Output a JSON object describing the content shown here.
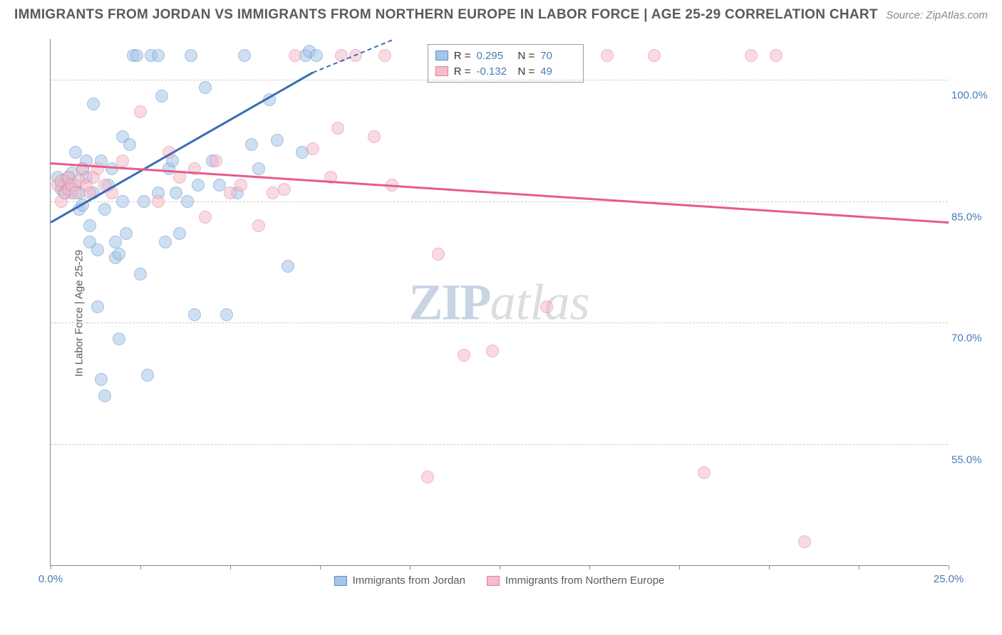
{
  "header": {
    "title": "IMMIGRANTS FROM JORDAN VS IMMIGRANTS FROM NORTHERN EUROPE IN LABOR FORCE | AGE 25-29 CORRELATION CHART",
    "source": "Source: ZipAtlas.com"
  },
  "chart": {
    "type": "scatter",
    "y_axis_label": "In Labor Force | Age 25-29",
    "xlim": [
      0,
      25
    ],
    "ylim": [
      40,
      105
    ],
    "x_ticks": [
      0,
      2.5,
      5,
      7.5,
      10,
      12.5,
      15,
      17.5,
      20,
      22.5,
      25
    ],
    "x_tick_labels": {
      "0": "0.0%",
      "25": "25.0%"
    },
    "y_ticks": [
      55,
      70,
      85,
      100
    ],
    "y_tick_labels": {
      "55": "55.0%",
      "70": "70.0%",
      "85": "85.0%",
      "100": "100.0%"
    },
    "grid_color": "#cccccc",
    "background_color": "#ffffff",
    "axis_color": "#888888",
    "tick_label_color": "#4a7bb8",
    "marker_size": 18,
    "marker_opacity": 0.55,
    "watermark": {
      "part1": "ZIP",
      "part2": "atlas",
      "color1": "#c8d4e3",
      "color2": "#dddddd",
      "fontsize": 72
    },
    "series": [
      {
        "name": "Immigrants from Jordan",
        "color_fill": "#a7c5e8",
        "color_border": "#5b8fc7",
        "trend_color": "#3a6db5",
        "R": "0.295",
        "N": "70",
        "trend": {
          "x1": 0,
          "y1": 82.5,
          "x2": 7.3,
          "y2": 101.0,
          "dash_x2": 9.5,
          "dash_y2": 105.0
        },
        "points": [
          [
            0.2,
            88
          ],
          [
            0.3,
            87
          ],
          [
            0.3,
            86.5
          ],
          [
            0.4,
            87.5
          ],
          [
            0.4,
            86
          ],
          [
            0.5,
            88
          ],
          [
            0.5,
            87
          ],
          [
            0.6,
            86
          ],
          [
            0.6,
            88.5
          ],
          [
            0.7,
            87
          ],
          [
            0.7,
            91
          ],
          [
            0.8,
            86
          ],
          [
            0.8,
            84
          ],
          [
            0.9,
            84.5
          ],
          [
            0.9,
            89
          ],
          [
            1.0,
            88
          ],
          [
            1.0,
            90
          ],
          [
            1.1,
            80
          ],
          [
            1.1,
            82
          ],
          [
            1.2,
            86
          ],
          [
            1.2,
            97
          ],
          [
            1.3,
            79
          ],
          [
            1.3,
            72
          ],
          [
            1.4,
            90
          ],
          [
            1.4,
            63
          ],
          [
            1.5,
            61
          ],
          [
            1.5,
            84
          ],
          [
            1.6,
            87
          ],
          [
            1.7,
            89
          ],
          [
            1.8,
            80
          ],
          [
            1.8,
            78
          ],
          [
            1.9,
            68
          ],
          [
            1.9,
            78.5
          ],
          [
            2.0,
            93
          ],
          [
            2.0,
            85
          ],
          [
            2.1,
            81
          ],
          [
            2.2,
            92
          ],
          [
            2.3,
            103
          ],
          [
            2.4,
            103
          ],
          [
            2.5,
            76
          ],
          [
            2.6,
            85
          ],
          [
            2.7,
            63.5
          ],
          [
            2.8,
            103
          ],
          [
            3.0,
            103
          ],
          [
            3.0,
            86
          ],
          [
            3.1,
            98
          ],
          [
            3.2,
            80
          ],
          [
            3.3,
            89
          ],
          [
            3.4,
            90
          ],
          [
            3.5,
            86
          ],
          [
            3.6,
            81
          ],
          [
            3.8,
            85
          ],
          [
            3.9,
            103
          ],
          [
            4.0,
            71
          ],
          [
            4.1,
            87
          ],
          [
            4.3,
            99
          ],
          [
            4.5,
            90
          ],
          [
            4.7,
            87
          ],
          [
            4.9,
            71
          ],
          [
            5.2,
            86
          ],
          [
            5.4,
            103
          ],
          [
            5.6,
            92
          ],
          [
            5.8,
            89
          ],
          [
            6.1,
            97.5
          ],
          [
            6.3,
            92.5
          ],
          [
            6.6,
            77
          ],
          [
            7.0,
            91
          ],
          [
            7.1,
            103
          ],
          [
            7.2,
            103.5
          ],
          [
            7.4,
            103
          ]
        ]
      },
      {
        "name": "Immigrants from Northern Europe",
        "color_fill": "#f5bcca",
        "color_border": "#e77a9a",
        "trend_color": "#e85a8a",
        "R": "-0.132",
        "N": "49",
        "trend": {
          "x1": 0,
          "y1": 89.8,
          "x2": 25,
          "y2": 82.5
        },
        "points": [
          [
            0.2,
            87
          ],
          [
            0.3,
            85
          ],
          [
            0.3,
            87.5
          ],
          [
            0.4,
            86
          ],
          [
            0.5,
            88
          ],
          [
            0.5,
            86.5
          ],
          [
            0.6,
            87
          ],
          [
            0.7,
            86
          ],
          [
            0.8,
            87.5
          ],
          [
            0.9,
            89
          ],
          [
            1.0,
            87
          ],
          [
            1.1,
            86
          ],
          [
            1.2,
            88
          ],
          [
            1.3,
            89
          ],
          [
            1.5,
            87
          ],
          [
            1.7,
            86
          ],
          [
            2.0,
            90
          ],
          [
            2.5,
            96
          ],
          [
            3.0,
            85
          ],
          [
            3.3,
            91
          ],
          [
            3.6,
            88
          ],
          [
            4.0,
            89
          ],
          [
            4.3,
            83
          ],
          [
            4.6,
            90
          ],
          [
            5.0,
            86
          ],
          [
            5.3,
            87
          ],
          [
            5.8,
            82
          ],
          [
            6.2,
            86
          ],
          [
            6.5,
            86.5
          ],
          [
            6.8,
            103
          ],
          [
            7.3,
            91.5
          ],
          [
            7.8,
            88
          ],
          [
            8.0,
            94
          ],
          [
            8.1,
            103
          ],
          [
            8.5,
            103
          ],
          [
            9.0,
            93
          ],
          [
            9.3,
            103
          ],
          [
            9.5,
            87
          ],
          [
            10.5,
            51
          ],
          [
            10.8,
            78.5
          ],
          [
            11.5,
            66
          ],
          [
            12.3,
            66.5
          ],
          [
            13.8,
            72
          ],
          [
            15.5,
            103
          ],
          [
            16.8,
            103
          ],
          [
            18.2,
            51.5
          ],
          [
            19.5,
            103
          ],
          [
            20.2,
            103
          ],
          [
            21.0,
            43
          ]
        ]
      }
    ],
    "stats_box": {
      "left_pct": 42,
      "top_pct": 1
    },
    "legend": {
      "items": [
        {
          "swatch": "s1",
          "label": "Immigrants from Jordan"
        },
        {
          "swatch": "s2",
          "label": "Immigrants from Northern Europe"
        }
      ]
    }
  }
}
